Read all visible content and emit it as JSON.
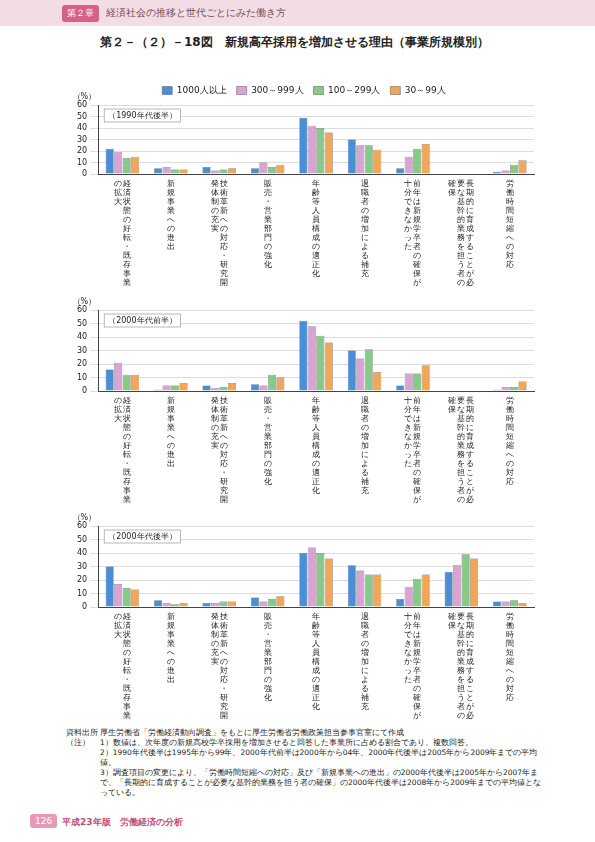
{
  "page": {
    "chapter_tag": "第２章",
    "chapter_title": "経済社会の推移と世代ごとにみた働き方",
    "figure_title": "第２－（２）－18図　新規高卒採用を増加させる理由（事業所規模別）",
    "source_label": "資料出所",
    "source": "厚生労働省「労働経済動向調査」をもとに厚生労働省労働政策担当参事官室にて作成",
    "notes_label": "（注）",
    "notes": [
      "1）数値は、次年度の新規高校学卒採用を増加させると回答した事業所に占める割合であり、複数回答。",
      "2）1990年代後半は1995年から99年、2000年代前半は2000年から04年、2000年代後半は2005年から2009年までの平均値。",
      "3）調査項目の変更により、「労働時間短縮への対応」及び「新規事業への進出」の2000年代後半は2005年から2007年まで、「長期的に育成することが必要な基幹的業務を担う者の確保」の2000年代後半は2008年から2009年までの平均値となっている。"
    ],
    "page_number": "126",
    "footer": "平成23年版　労働経済の分析"
  },
  "chart_data": [
    {
      "type": "bar",
      "subtitle": "（1990年代後半）",
      "y_label": "（%）",
      "legend": "top",
      "grid": true,
      "ylim": [
        0,
        60
      ],
      "yticks": [
        0,
        10,
        20,
        30,
        40,
        50,
        60
      ],
      "categories": [
        "経済状態の好転・既存事業の拡大",
        "新規事業への進出",
        "技術革新への対応・研究開発体制の充実",
        "販売・営業部門の強化",
        "年齢等人員構成の適正化",
        "退職者の増加による補充",
        "前年は新規学卒者の確保が十分できなかった",
        "長期的に育成することが必要な基幹的業務を担う者の確保",
        "労働時間短縮への対応"
      ],
      "series": [
        {
          "name": "1000人以上",
          "color": "#4a8fd6",
          "values": [
            22,
            5,
            6,
            5,
            49,
            30,
            5,
            null,
            2
          ]
        },
        {
          "name": "300～999人",
          "color": "#d9a3d6",
          "values": [
            19,
            6,
            3,
            10,
            42,
            25,
            15,
            null,
            3
          ]
        },
        {
          "name": "100～299人",
          "color": "#86c98a",
          "values": [
            14,
            4,
            4,
            6,
            40,
            25,
            22,
            null,
            8
          ]
        },
        {
          "name": "30～99人",
          "color": "#f2a65a",
          "values": [
            15,
            4,
            5,
            8,
            36,
            21,
            26,
            null,
            12
          ]
        }
      ]
    },
    {
      "type": "bar",
      "subtitle": "（2000年代前半）",
      "y_label": "（%）",
      "grid": true,
      "ylim": [
        0,
        60
      ],
      "yticks": [
        0,
        10,
        20,
        30,
        40,
        50,
        60
      ],
      "categories": [
        "経済状態の好転・既存事業の拡大",
        "新規事業への進出",
        "技術革新への対応・研究開発体制の充実",
        "販売・営業部門の強化",
        "年齢等人員構成の適正化",
        "退職者の増加による補充",
        "前年は新規学卒者の確保が十分できなかった",
        "長期的に育成することが必要な基幹的業務を担う者の確保",
        "労働時間短縮への対応"
      ],
      "series": [
        {
          "name": "1000人以上",
          "color": "#4a8fd6",
          "values": [
            16,
            1,
            4,
            5,
            52,
            30,
            4,
            null,
            1
          ]
        },
        {
          "name": "300～999人",
          "color": "#d9a3d6",
          "values": [
            21,
            4,
            2,
            4,
            48,
            24,
            13,
            null,
            3
          ]
        },
        {
          "name": "100～299人",
          "color": "#86c98a",
          "values": [
            12,
            4,
            3,
            12,
            41,
            31,
            13,
            null,
            3
          ]
        },
        {
          "name": "30～99人",
          "color": "#f2a65a",
          "values": [
            12,
            6,
            6,
            10,
            36,
            14,
            19,
            null,
            7
          ]
        }
      ]
    },
    {
      "type": "bar",
      "subtitle": "（2000年代後半）",
      "y_label": "（%）",
      "grid": true,
      "ylim": [
        0,
        60
      ],
      "yticks": [
        0,
        10,
        20,
        30,
        40,
        50,
        60
      ],
      "categories": [
        "経済状態の好転・既存事業の拡大",
        "新規事業への進出",
        "技術革新への対応・研究開発体制の充実",
        "販売・営業部門の強化",
        "年齢等人員構成の適正化",
        "退職者の増加による補充",
        "前年は新規学卒者の確保が十分できなかった",
        "長期的に育成することが必要な基幹的業務を担う者の確保",
        "労働時間短縮への対応"
      ],
      "series": [
        {
          "name": "1000人以上",
          "color": "#4a8fd6",
          "values": [
            30,
            5,
            3,
            7,
            40,
            31,
            6,
            26,
            4
          ]
        },
        {
          "name": "300～999人",
          "color": "#d9a3d6",
          "values": [
            17,
            3,
            3,
            4,
            44,
            27,
            15,
            31,
            4
          ]
        },
        {
          "name": "100～299人",
          "color": "#86c98a",
          "values": [
            14,
            2,
            4,
            6,
            40,
            24,
            21,
            39,
            5
          ]
        },
        {
          "name": "30～99人",
          "color": "#f2a65a",
          "values": [
            13,
            3,
            4,
            8,
            36,
            24,
            24,
            36,
            3
          ]
        }
      ]
    }
  ]
}
